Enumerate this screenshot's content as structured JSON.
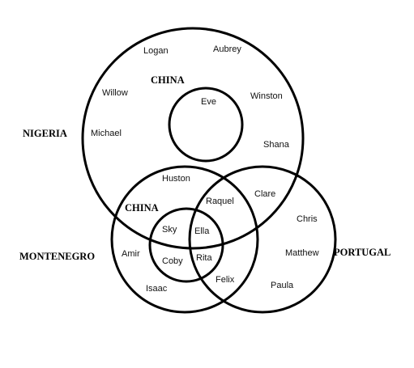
{
  "diagram": {
    "sets": {
      "nigeria": "NIGERIA",
      "china_top": "CHINA",
      "china_bottom": "CHINA",
      "montenegro": "MONTENEGRO",
      "portugal": "PORTUGAL"
    },
    "members": {
      "logan": "Logan",
      "aubrey": "Aubrey",
      "willow": "Willow",
      "winston": "Winston",
      "eve": "Eve",
      "michael": "Michael",
      "shana": "Shana",
      "huston": "Huston",
      "clare": "Clare",
      "raquel": "Raquel",
      "chris": "Chris",
      "sky": "Sky",
      "ella": "Ella",
      "amir": "Amir",
      "matthew": "Matthew",
      "coby": "Coby",
      "rita": "Rita",
      "felix": "Felix",
      "isaac": "Isaac",
      "paula": "Paula"
    }
  }
}
